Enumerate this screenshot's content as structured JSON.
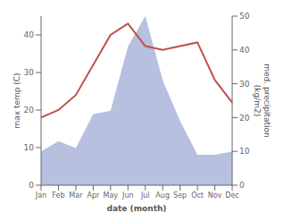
{
  "chart_data": {
    "type": "line",
    "categories": [
      "Jan",
      "Feb",
      "Mar",
      "Apr",
      "May",
      "Jun",
      "Jul",
      "Aug",
      "Sep",
      "Oct",
      "Nov",
      "Dec"
    ],
    "series": [
      {
        "type": "area",
        "axis": "y2",
        "color": "#b8c0e0",
        "values": [
          10,
          13,
          11,
          21,
          22,
          41,
          50,
          31,
          19,
          9,
          9,
          10
        ]
      },
      {
        "type": "line",
        "color": "#c0504d",
        "values": [
          18,
          20,
          24,
          32,
          40,
          43,
          37,
          36,
          37,
          38,
          28,
          22
        ]
      }
    ],
    "xlabel": "date (month)",
    "ylabel": "max temp (C)",
    "y2label": "med. precipitation\n(kg/m2)",
    "ylim": [
      0,
      45
    ],
    "yticks": [
      0,
      10,
      20,
      30,
      40
    ],
    "y2lim": [
      0,
      50
    ],
    "y2ticks": [
      0,
      10,
      20,
      30,
      40,
      50
    ]
  }
}
